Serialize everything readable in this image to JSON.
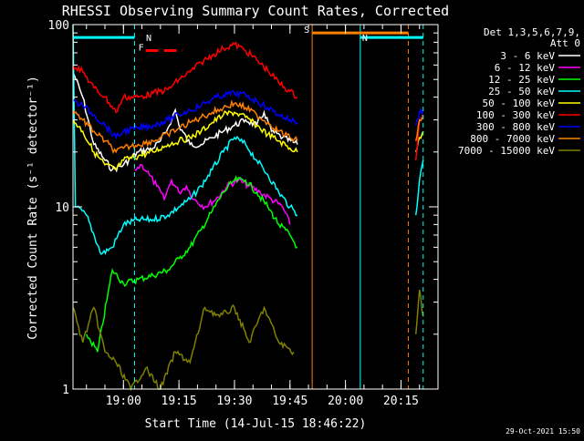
{
  "chart_data": {
    "type": "line",
    "title": "RHESSI Observing Summary Count Rates, Corrected",
    "xlabel": "Start Time (14-Jul-15 18:46:22)",
    "ylabel": "Corrected Count Rate (s⁻¹ detector⁻¹)",
    "y_scale": "log",
    "ylim": [
      1,
      100
    ],
    "xlim": [
      "18:46:22",
      "20:25:00"
    ],
    "y_ticks": [
      "1",
      "10",
      "100"
    ],
    "x_ticks": [
      {
        "t": "19:00",
        "label": "19:00"
      },
      {
        "t": "19:15",
        "label": "19:15"
      },
      {
        "t": "19:30",
        "label": "19:30"
      },
      {
        "t": "19:45",
        "label": "19:45"
      },
      {
        "t": "20:00",
        "label": "20:00"
      },
      {
        "t": "20:15",
        "label": "20:15"
      }
    ],
    "legend": {
      "header": [
        "Det 1,3,5,6,7,9,",
        "Att 0"
      ],
      "placement": "right"
    },
    "timestamp": "29-Oct-2021 15:50",
    "colors": {
      "background": "#000000",
      "axes": "#ffffff",
      "night": "#00ffff",
      "flare": "#ff0000",
      "saa": "#ff8000"
    },
    "annotations": [
      {
        "label": "N",
        "kind": "night",
        "color": "#00ffff",
        "start": "18:46:22",
        "end": "19:03:00",
        "y": 85
      },
      {
        "label": "N",
        "kind": "night",
        "color": "#00ffff",
        "start": "20:04:00",
        "end": "20:21:00",
        "y": 85
      },
      {
        "label": "F",
        "kind": "flare",
        "color": "#ff0000",
        "start": "19:06:00",
        "end": "19:16:00",
        "y": 72,
        "dashed": true
      },
      {
        "label": "S",
        "kind": "saa",
        "color": "#ff8000",
        "start": "19:51:00",
        "end": "20:17:00",
        "y": 90
      }
    ],
    "vlines": [
      {
        "t": "19:03:00",
        "color": "#00ffff",
        "dashed": true
      },
      {
        "t": "19:51:00",
        "color": "#ff8000",
        "dashed": false
      },
      {
        "t": "20:04:00",
        "color": "#00ffff",
        "dashed": false
      },
      {
        "t": "20:17:00",
        "color": "#ff8000",
        "dashed": true
      },
      {
        "t": "20:21:00",
        "color": "#00ffff",
        "dashed": true
      }
    ],
    "series": [
      {
        "name": "3 - 6 keV",
        "color": "#ffffff",
        "points": [
          [
            "18:46:22",
            55
          ],
          [
            "18:49:00",
            40
          ],
          [
            "18:52:00",
            22
          ],
          [
            "18:55:00",
            18
          ],
          [
            "18:57:00",
            16
          ],
          [
            "19:00:00",
            17
          ],
          [
            "19:04:00",
            20
          ],
          [
            "19:08:00",
            21
          ],
          [
            "19:10:00",
            23
          ],
          [
            "19:12:00",
            27
          ],
          [
            "19:14:00",
            34
          ],
          [
            "19:15:00",
            28
          ],
          [
            "19:18:00",
            22
          ],
          [
            "19:21:00",
            22
          ],
          [
            "19:24:00",
            24
          ],
          [
            "19:27:00",
            26
          ],
          [
            "19:30:00",
            28
          ],
          [
            "19:33:00",
            30
          ],
          [
            "19:36:00",
            28
          ],
          [
            "19:38:00",
            33
          ],
          [
            "19:40:00",
            26
          ],
          [
            "19:43:00",
            24
          ],
          [
            "19:47:00",
            22
          ]
        ]
      },
      {
        "name": "6 - 12 keV",
        "color": "#ff00ff",
        "points": [
          [
            "19:03:00",
            16
          ],
          [
            "19:05:00",
            17
          ],
          [
            "19:07:00",
            15
          ],
          [
            "19:09:00",
            13
          ],
          [
            "19:11:00",
            11
          ],
          [
            "19:13:00",
            14
          ],
          [
            "19:15:00",
            12
          ],
          [
            "19:17:00",
            13
          ],
          [
            "19:19:00",
            11
          ],
          [
            "19:22:00",
            10
          ],
          [
            "19:25:00",
            11
          ],
          [
            "19:28:00",
            13
          ],
          [
            "19:31:00",
            14
          ],
          [
            "19:34:00",
            13
          ],
          [
            "19:37:00",
            12
          ],
          [
            "19:40:00",
            11
          ],
          [
            "19:43:00",
            10
          ],
          [
            "19:45:00",
            8
          ]
        ]
      },
      {
        "name": "12 - 25 keV",
        "color": "#00ff00",
        "points": [
          [
            "18:50:00",
            2.0
          ],
          [
            "18:53:00",
            1.6
          ],
          [
            "18:57:00",
            4.5
          ],
          [
            "19:00:00",
            3.8
          ],
          [
            "19:04:00",
            4.0
          ],
          [
            "19:08:00",
            4.2
          ],
          [
            "19:12:00",
            4.5
          ],
          [
            "19:15:00",
            5.2
          ],
          [
            "19:18:00",
            6.0
          ],
          [
            "19:21:00",
            7.5
          ],
          [
            "19:24:00",
            9.5
          ],
          [
            "19:27:00",
            12
          ],
          [
            "19:30:00",
            14
          ],
          [
            "19:33:00",
            14
          ],
          [
            "19:36:00",
            12
          ],
          [
            "19:39:00",
            10
          ],
          [
            "19:42:00",
            8
          ],
          [
            "19:45:00",
            7
          ],
          [
            "19:47:00",
            6
          ]
        ]
      },
      {
        "name": "25 - 50 keV",
        "color": "#00ffff",
        "points": [
          [
            "18:46:22",
            100
          ],
          [
            "18:47:00",
            10
          ],
          [
            "18:50:00",
            9
          ],
          [
            "18:54:00",
            5.5
          ],
          [
            "18:57:00",
            6
          ],
          [
            "19:00:00",
            8
          ],
          [
            "19:04:00",
            8.5
          ],
          [
            "19:08:00",
            8.5
          ],
          [
            "19:12:00",
            9
          ],
          [
            "19:15:00",
            10
          ],
          [
            "19:18:00",
            11
          ],
          [
            "19:21:00",
            13
          ],
          [
            "19:24:00",
            16
          ],
          [
            "19:27:00",
            20
          ],
          [
            "19:30:00",
            24
          ],
          [
            "19:33:00",
            22
          ],
          [
            "19:36:00",
            18
          ],
          [
            "19:39:00",
            15
          ],
          [
            "19:42:00",
            12
          ],
          [
            "19:45:00",
            10
          ],
          [
            "19:47:00",
            9
          ],
          [
            "20:19:00",
            9
          ],
          [
            "20:20:00",
            14
          ],
          [
            "20:21:00",
            18
          ]
        ]
      },
      {
        "name": "50 - 100 keV",
        "color": "#ffff00",
        "points": [
          [
            "18:46:22",
            30
          ],
          [
            "18:49:00",
            26
          ],
          [
            "18:52:00",
            20
          ],
          [
            "18:55:00",
            17
          ],
          [
            "18:58:00",
            16
          ],
          [
            "19:00:00",
            18
          ],
          [
            "19:04:00",
            19
          ],
          [
            "19:08:00",
            20
          ],
          [
            "19:12:00",
            22
          ],
          [
            "19:15:00",
            23
          ],
          [
            "19:18:00",
            24
          ],
          [
            "19:21:00",
            26
          ],
          [
            "19:24:00",
            29
          ],
          [
            "19:27:00",
            32
          ],
          [
            "19:30:00",
            33
          ],
          [
            "19:33:00",
            31
          ],
          [
            "19:36:00",
            28
          ],
          [
            "19:39:00",
            25
          ],
          [
            "19:42:00",
            23
          ],
          [
            "19:45:00",
            21
          ],
          [
            "19:47:00",
            20
          ],
          [
            "20:19:00",
            20
          ],
          [
            "20:20:00",
            24
          ],
          [
            "20:21:00",
            26
          ]
        ]
      },
      {
        "name": "100 - 300 keV",
        "color": "#ff0000",
        "points": [
          [
            "18:46:22",
            60
          ],
          [
            "18:49:00",
            55
          ],
          [
            "18:52:00",
            45
          ],
          [
            "18:55:00",
            40
          ],
          [
            "18:58:00",
            33
          ],
          [
            "19:00:00",
            40
          ],
          [
            "19:04:00",
            40
          ],
          [
            "19:08:00",
            42
          ],
          [
            "19:12:00",
            44
          ],
          [
            "19:15:00",
            50
          ],
          [
            "19:18:00",
            55
          ],
          [
            "19:21:00",
            62
          ],
          [
            "19:24:00",
            68
          ],
          [
            "19:27:00",
            74
          ],
          [
            "19:30:00",
            78
          ],
          [
            "19:33:00",
            72
          ],
          [
            "19:36:00",
            64
          ],
          [
            "19:39:00",
            56
          ],
          [
            "19:42:00",
            48
          ],
          [
            "19:45:00",
            43
          ],
          [
            "19:47:00",
            40
          ],
          [
            "20:19:00",
            18
          ],
          [
            "20:20:00",
            30
          ],
          [
            "20:21:00",
            32
          ]
        ]
      },
      {
        "name": "300 - 800 keV",
        "color": "#0000ff",
        "points": [
          [
            "18:46:22",
            38
          ],
          [
            "18:49:00",
            36
          ],
          [
            "18:52:00",
            32
          ],
          [
            "18:55:00",
            28
          ],
          [
            "18:58:00",
            24
          ],
          [
            "19:00:00",
            26
          ],
          [
            "19:04:00",
            27
          ],
          [
            "19:08:00",
            28
          ],
          [
            "19:12:00",
            30
          ],
          [
            "19:15:00",
            32
          ],
          [
            "19:18:00",
            34
          ],
          [
            "19:21:00",
            36
          ],
          [
            "19:24:00",
            39
          ],
          [
            "19:27:00",
            41
          ],
          [
            "19:30:00",
            42
          ],
          [
            "19:33:00",
            41
          ],
          [
            "19:36:00",
            38
          ],
          [
            "19:39:00",
            35
          ],
          [
            "19:42:00",
            32
          ],
          [
            "19:45:00",
            30
          ],
          [
            "19:47:00",
            29
          ],
          [
            "20:19:00",
            28
          ],
          [
            "20:20:00",
            33
          ],
          [
            "20:21:00",
            34
          ]
        ]
      },
      {
        "name": "800 - 7000 keV",
        "color": "#ff8000",
        "points": [
          [
            "18:46:22",
            34
          ],
          [
            "18:49:00",
            30
          ],
          [
            "18:52:00",
            26
          ],
          [
            "18:55:00",
            23
          ],
          [
            "18:58:00",
            20
          ],
          [
            "19:00:00",
            21
          ],
          [
            "19:04:00",
            22
          ],
          [
            "19:08:00",
            23
          ],
          [
            "19:12:00",
            25
          ],
          [
            "19:15:00",
            27
          ],
          [
            "19:18:00",
            29
          ],
          [
            "19:21:00",
            31
          ],
          [
            "19:24:00",
            33
          ],
          [
            "19:27:00",
            35
          ],
          [
            "19:30:00",
            37
          ],
          [
            "19:33:00",
            35
          ],
          [
            "19:36:00",
            32
          ],
          [
            "19:39:00",
            29
          ],
          [
            "19:42:00",
            26
          ],
          [
            "19:45:00",
            24
          ],
          [
            "19:47:00",
            23
          ],
          [
            "20:19:00",
            23
          ],
          [
            "20:20:00",
            30
          ],
          [
            "20:21:00",
            31
          ]
        ]
      },
      {
        "name": "7000 - 15000 keV",
        "color": "#808000",
        "points": [
          [
            "18:46:22",
            2.8
          ],
          [
            "18:49:00",
            1.8
          ],
          [
            "18:52:00",
            2.8
          ],
          [
            "18:55:00",
            1.6
          ],
          [
            "18:58:00",
            1.4
          ],
          [
            "19:02:00",
            1.0
          ],
          [
            "19:06:00",
            1.3
          ],
          [
            "19:10:00",
            1.0
          ],
          [
            "19:14:00",
            1.6
          ],
          [
            "19:18:00",
            1.4
          ],
          [
            "19:22:00",
            2.8
          ],
          [
            "19:26:00",
            2.5
          ],
          [
            "19:30:00",
            2.8
          ],
          [
            "19:34:00",
            1.8
          ],
          [
            "19:38:00",
            2.8
          ],
          [
            "19:42:00",
            1.8
          ],
          [
            "19:46:00",
            1.6
          ],
          [
            "20:19:00",
            2.0
          ],
          [
            "20:20:00",
            3.5
          ],
          [
            "20:21:00",
            2.5
          ]
        ]
      }
    ]
  }
}
